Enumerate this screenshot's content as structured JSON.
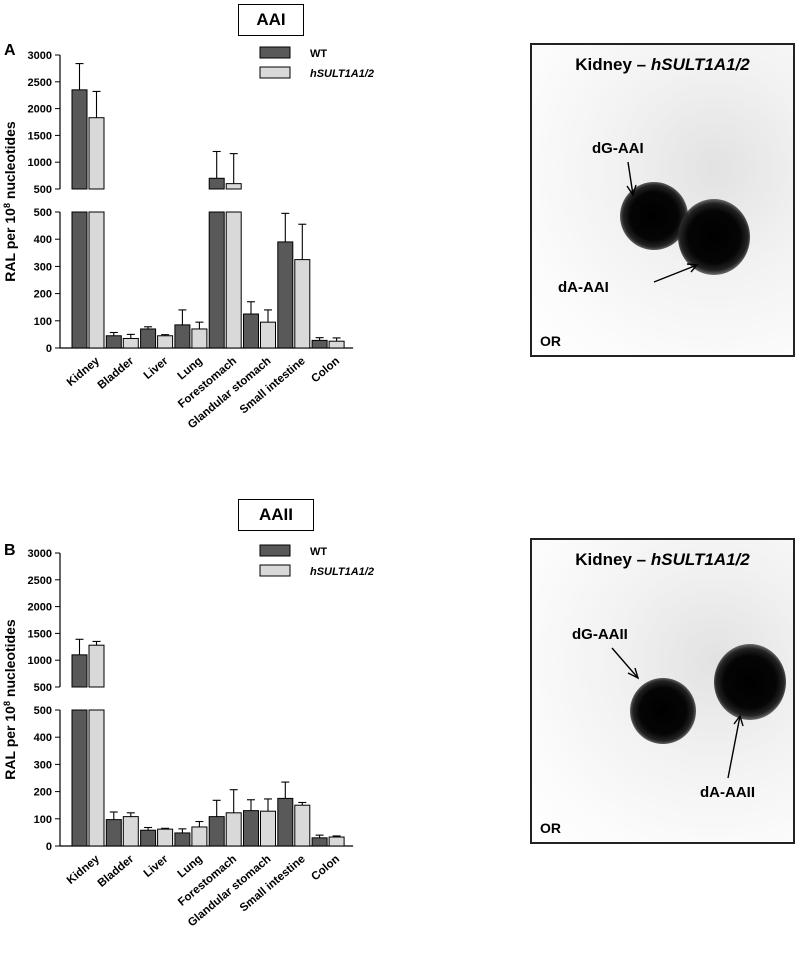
{
  "colors": {
    "wt": "#595959",
    "hsult": "#d9d9d9",
    "stroke": "#000000"
  },
  "panels": [
    {
      "letter": "A",
      "title": "AAI",
      "blot": {
        "title_prefix": "Kidney – ",
        "title_gene": "hSULT1A1/2",
        "label_1": "dG-AAI",
        "label_2": "dA-AAI",
        "origin": "OR"
      }
    },
    {
      "letter": "B",
      "title": "AAII",
      "blot": {
        "title_prefix": "Kidney – ",
        "title_gene": "hSULT1A1/2",
        "label_1": "dG-AAII",
        "label_2": "dA-AAII",
        "origin": "OR"
      }
    }
  ],
  "chart_data": [
    {
      "type": "bar",
      "title": "AAI",
      "ylabel_main": "RAL per 10",
      "ylabel_sup": "8",
      "ylabel_tail": " nucleotides",
      "categories": [
        "Kidney",
        "Bladder",
        "Liver",
        "Lung",
        "Forestomach",
        "Glandular stomach",
        "Small intestine",
        "Colon"
      ],
      "axis_break": true,
      "lower_ticks": [
        0,
        100,
        200,
        300,
        400,
        500
      ],
      "upper_ticks": [
        500,
        1000,
        1500,
        2000,
        2500,
        3000
      ],
      "lower_ylim": [
        0,
        500
      ],
      "upper_ylim": [
        500,
        3000
      ],
      "series": [
        {
          "name": "WT",
          "values": [
            2350,
            45,
            70,
            85,
            700,
            125,
            390,
            28
          ],
          "errors": [
            490,
            12,
            8,
            55,
            500,
            45,
            105,
            10
          ]
        },
        {
          "name": "hSULT1A1/2",
          "values": [
            1830,
            35,
            45,
            70,
            600,
            95,
            325,
            25
          ],
          "errors": [
            490,
            15,
            4,
            25,
            560,
            45,
            130,
            12
          ]
        }
      ]
    },
    {
      "type": "bar",
      "title": "AAII",
      "ylabel_main": "RAL per 10",
      "ylabel_sup": "8",
      "ylabel_tail": " nucleotides",
      "categories": [
        "Kidney",
        "Bladder",
        "Liver",
        "Lung",
        "Forestomach",
        "Glandular stomach",
        "Small intestine",
        "Colon"
      ],
      "axis_break": true,
      "lower_ticks": [
        0,
        100,
        200,
        300,
        400,
        500
      ],
      "upper_ticks": [
        500,
        1000,
        1500,
        2000,
        2500,
        3000
      ],
      "lower_ylim": [
        0,
        500
      ],
      "upper_ylim": [
        500,
        3000
      ],
      "series": [
        {
          "name": "WT",
          "values": [
            1100,
            97,
            58,
            48,
            108,
            130,
            175,
            30
          ],
          "errors": [
            290,
            28,
            10,
            15,
            60,
            40,
            60,
            10
          ]
        },
        {
          "name": "hSULT1A1/2",
          "values": [
            1280,
            108,
            62,
            70,
            122,
            128,
            150,
            33
          ],
          "errors": [
            70,
            14,
            3,
            20,
            85,
            45,
            10,
            4
          ]
        }
      ]
    }
  ]
}
